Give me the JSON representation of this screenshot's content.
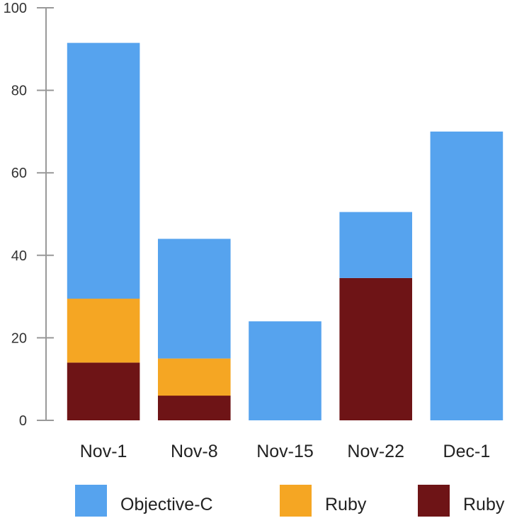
{
  "chart_data": {
    "type": "bar",
    "stacked": true,
    "categories": [
      "Nov-1",
      "Nov-8",
      "Nov-15",
      "Nov-22",
      "Dec-1"
    ],
    "series": [
      {
        "name": "Ruby",
        "color": "#6e1416",
        "values": [
          14,
          6,
          0,
          34.5,
          0
        ]
      },
      {
        "name": "Ruby",
        "color": "#f5a623",
        "values": [
          15.5,
          9,
          0,
          0,
          0
        ]
      },
      {
        "name": "Objective-C",
        "color": "#56a3ee",
        "values": [
          62,
          29,
          24,
          16,
          70
        ]
      }
    ],
    "legend_order": [
      2,
      1,
      0
    ],
    "legend_position": "bottom",
    "y_ticks": [
      "0",
      "20",
      "40",
      "60",
      "80",
      "100"
    ],
    "ylim": [
      0,
      100
    ],
    "grid": false
  }
}
